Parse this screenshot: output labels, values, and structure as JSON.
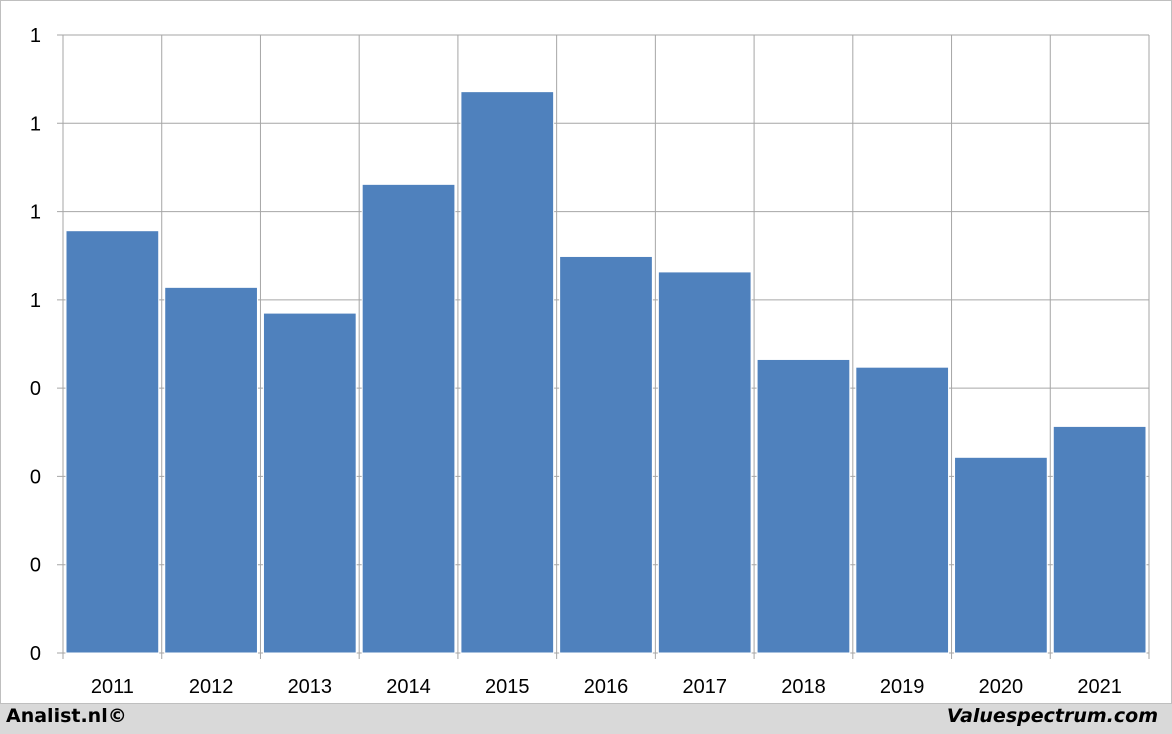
{
  "chart_data": {
    "type": "bar",
    "categories": [
      "2011",
      "2012",
      "2013",
      "2014",
      "2015",
      "2016",
      "2017",
      "2018",
      "2019",
      "2020",
      "2021"
    ],
    "values": [
      0.82,
      0.71,
      0.66,
      0.91,
      1.09,
      0.77,
      0.74,
      0.57,
      0.555,
      0.38,
      0.44
    ],
    "ytick_labels": [
      "0",
      "0",
      "0",
      "0",
      "1",
      "1",
      "1",
      "1"
    ],
    "ylim": [
      0,
      1.2
    ],
    "grid": true,
    "legend": "none",
    "bar_color": "#4f81bd",
    "grid_color": "#a6a6a6",
    "title": "",
    "xlabel": "",
    "ylabel": ""
  },
  "footer": {
    "left": "Analist.nl©",
    "right": "Valuespectrum.com"
  }
}
